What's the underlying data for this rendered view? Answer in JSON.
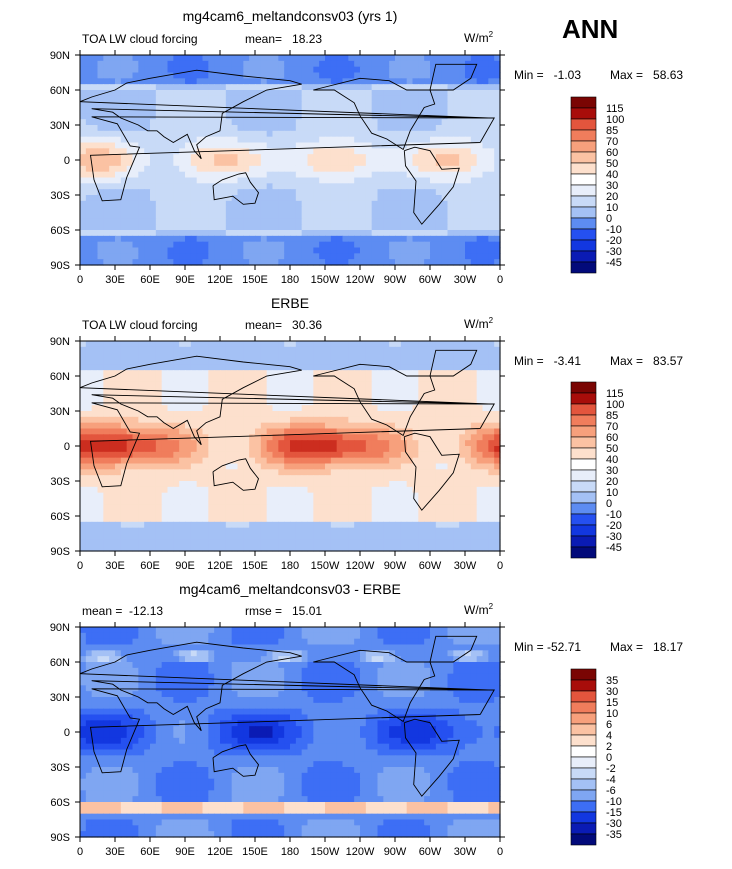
{
  "season": "ANN",
  "colors": {
    "base_colors": [
      "#020a7a",
      "#0a1bb4",
      "#1237e0",
      "#2550f0",
      "#3d6ef5",
      "#5d8cf2",
      "#7fa6f2",
      "#a4c1f5",
      "#c8daf7",
      "#e8eefa",
      "#fde0cd",
      "#fbc2a3",
      "#f7a07c",
      "#f07d5c",
      "#e3553d",
      "#cc2d1f",
      "#a80d0a",
      "#7a0503"
    ],
    "coast": "#000000",
    "land_tint": "#ffffff"
  },
  "axes": {
    "lat_ticks": [
      "90N",
      "60N",
      "30N",
      "0",
      "30S",
      "60S",
      "90S"
    ],
    "lon_ticks": [
      "0",
      "30E",
      "60E",
      "90E",
      "120E",
      "150E",
      "180",
      "150W",
      "120W",
      "90W",
      "60W",
      "30W",
      "0"
    ]
  },
  "panels": [
    {
      "title": "mg4cam6_meltandconsv03 (yrs 1)",
      "left_label": "TOA LW cloud forcing",
      "center_label": "mean=   18.23",
      "units": "W/m",
      "units_sup": "2",
      "min_label": "Min =   -1.03",
      "max_label": "Max =   58.63",
      "colorbar_labels": [
        "115",
        "100",
        "85",
        "70",
        "60",
        "50",
        "40",
        "30",
        "20",
        "10",
        "0",
        "-10",
        "-20",
        "-30",
        "-45"
      ]
    },
    {
      "title": "ERBE",
      "left_label": "TOA LW cloud forcing",
      "center_label": "mean=   30.36",
      "units": "W/m",
      "units_sup": "2",
      "min_label": "Min =   -3.41",
      "max_label": "Max =   83.57",
      "colorbar_labels": [
        "115",
        "100",
        "85",
        "70",
        "60",
        "50",
        "40",
        "30",
        "20",
        "10",
        "0",
        "-10",
        "-20",
        "-30",
        "-45"
      ]
    },
    {
      "title": "mg4cam6_meltandconsv03 - ERBE",
      "left_label": "mean =  -12.13",
      "center_label": "rmse =   15.01",
      "units": "W/m",
      "units_sup": "2",
      "min_label": "Min = -52.71",
      "max_label": "Max =   18.17",
      "colorbar_labels": [
        "35",
        "30",
        "15",
        "10",
        "6",
        "4",
        "2",
        "0",
        "-2",
        "-4",
        "-6",
        "-10",
        "-15",
        "-30",
        "-35"
      ]
    }
  ]
}
